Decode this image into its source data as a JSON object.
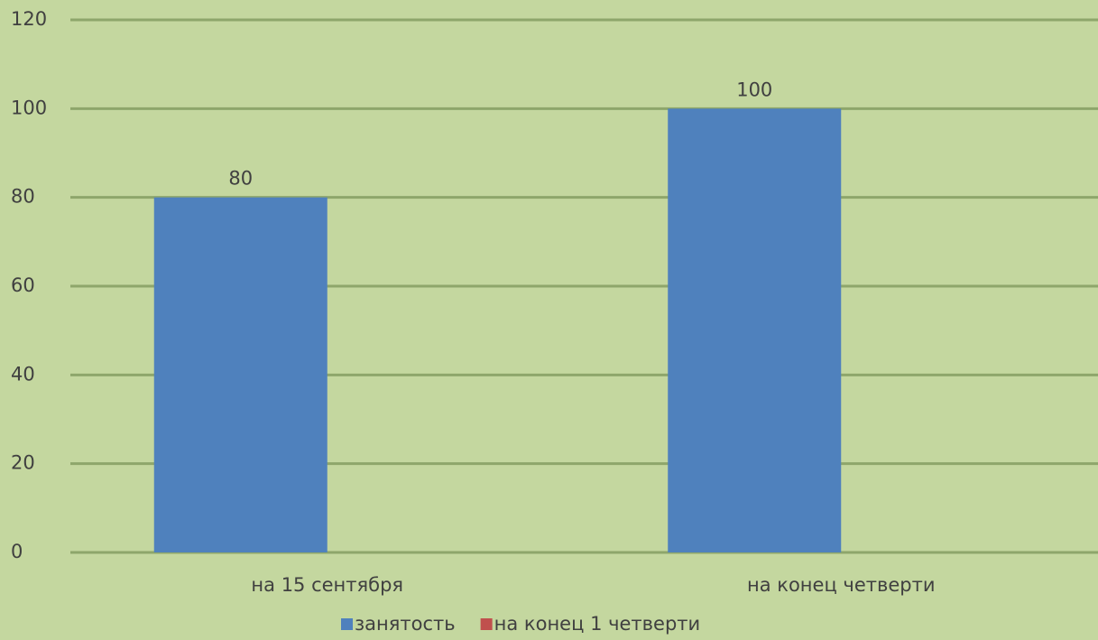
{
  "chart_data": {
    "type": "bar",
    "categories": [
      "на 15 сентября",
      "на конец четверти"
    ],
    "series": [
      {
        "name": "занятость",
        "color": "#4f81bd",
        "values": [
          80,
          100
        ]
      },
      {
        "name": "на конец 1 четверти",
        "color": "#c0504d",
        "values": [
          null,
          null
        ]
      }
    ],
    "ylim": [
      0,
      120
    ],
    "yticks": [
      0,
      20,
      40,
      60,
      80,
      100,
      120
    ],
    "grid": true,
    "legend": "bottom",
    "data_labels": true
  }
}
